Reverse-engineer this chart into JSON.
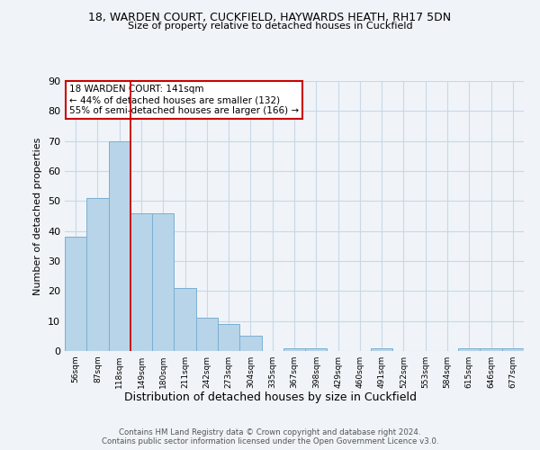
{
  "title1": "18, WARDEN COURT, CUCKFIELD, HAYWARDS HEATH, RH17 5DN",
  "title2": "Size of property relative to detached houses in Cuckfield",
  "xlabel": "Distribution of detached houses by size in Cuckfield",
  "ylabel": "Number of detached properties",
  "footnote": "Contains HM Land Registry data © Crown copyright and database right 2024.\nContains public sector information licensed under the Open Government Licence v3.0.",
  "bin_labels": [
    "56sqm",
    "87sqm",
    "118sqm",
    "149sqm",
    "180sqm",
    "211sqm",
    "242sqm",
    "273sqm",
    "304sqm",
    "335sqm",
    "367sqm",
    "398sqm",
    "429sqm",
    "460sqm",
    "491sqm",
    "522sqm",
    "553sqm",
    "584sqm",
    "615sqm",
    "646sqm",
    "677sqm"
  ],
  "bar_heights": [
    38,
    51,
    70,
    46,
    46,
    21,
    11,
    9,
    5,
    0,
    1,
    1,
    0,
    0,
    1,
    0,
    0,
    0,
    1,
    1,
    1
  ],
  "bar_color": "#b8d4e8",
  "bar_edge_color": "#7aafd4",
  "annotation_box_text": "18 WARDEN COURT: 141sqm\n← 44% of detached houses are smaller (132)\n55% of semi-detached houses are larger (166) →",
  "vline_x_index": 2.5,
  "vline_color": "#cc0000",
  "annotation_box_edge_color": "#cc0000",
  "ylim": [
    0,
    90
  ],
  "yticks": [
    0,
    10,
    20,
    30,
    40,
    50,
    60,
    70,
    80,
    90
  ],
  "grid_color": "#c8d8e8",
  "background_color": "#f0f4f8"
}
